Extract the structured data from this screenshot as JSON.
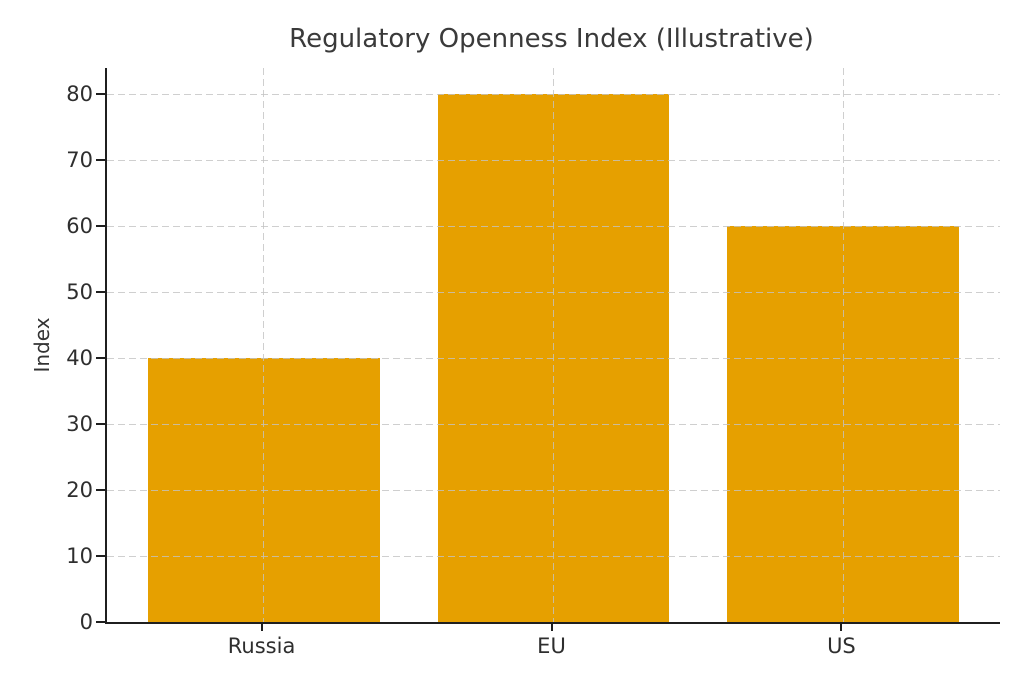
{
  "chart_data": {
    "type": "bar",
    "title": "Regulatory Openness Index (Illustrative)",
    "xlabel": "",
    "ylabel": "Index",
    "categories": [
      "Russia",
      "EU",
      "US"
    ],
    "values": [
      40,
      80,
      60
    ],
    "yticks": [
      0,
      10,
      20,
      30,
      40,
      50,
      60,
      70,
      80
    ],
    "ylim": [
      0,
      84
    ],
    "grid": true,
    "grid_style": "dashed",
    "legend_position": "none",
    "bar_color": "#E6A000",
    "grid_color": "#c3c3c3",
    "spine_color": "#1f1f1f",
    "title_color": "#3a3a3a",
    "tick_color": "#2e2e2e"
  }
}
